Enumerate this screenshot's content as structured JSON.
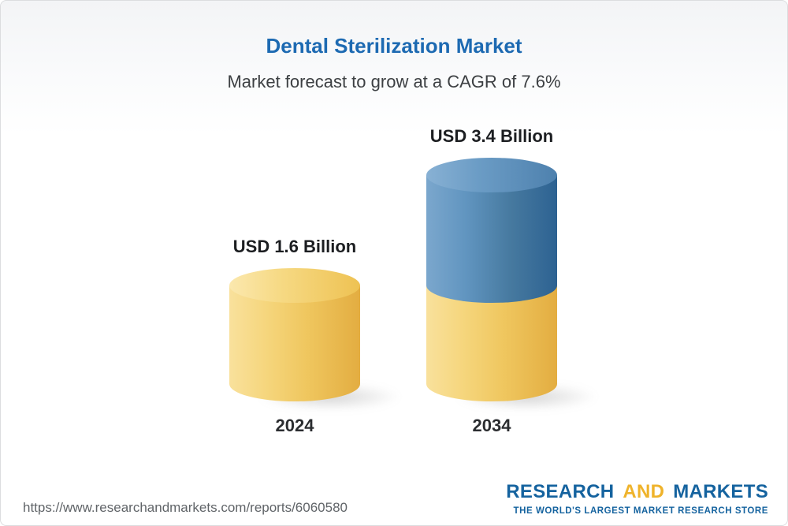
{
  "chart_data": {
    "type": "bar",
    "style": "cylinder",
    "title": "Dental Sterilization Market",
    "subtitle": "Market forecast to grow at a CAGR of 7.6%",
    "cagr": "7.6%",
    "unit": "USD Billion",
    "categories": [
      "2024",
      "2034"
    ],
    "values": [
      1.6,
      3.4
    ],
    "bars": [
      {
        "category": "2024",
        "total": 1.6,
        "value_label": "USD 1.6 Billion",
        "segments": [
          {
            "name": "current-market",
            "value": 1.6,
            "color": "yellow"
          }
        ]
      },
      {
        "category": "2034",
        "total": 3.4,
        "value_label": "USD 3.4 Billion",
        "segments": [
          {
            "name": "base-market",
            "value": 1.6,
            "color": "yellow"
          },
          {
            "name": "forecast-growth",
            "value": 1.8,
            "color": "blue"
          }
        ]
      }
    ],
    "colors": {
      "yellow": "#f2cd68",
      "blue": "#4579ab",
      "title_blue": "#1d6ab2"
    },
    "legend": "none",
    "grid": false
  },
  "footer": {
    "url": "https://www.researchandmarkets.com/reports/6060580",
    "logo": {
      "research": "RESEARCH",
      "and": "AND",
      "markets": "MARKETS",
      "tagline": "THE WORLD'S LARGEST MARKET RESEARCH STORE"
    }
  }
}
